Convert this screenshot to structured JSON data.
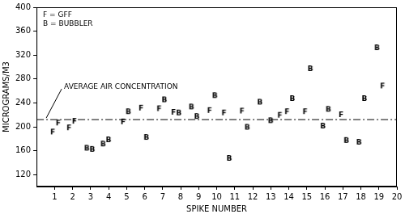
{
  "chart_data": {
    "type": "scatter",
    "x_label": "SPIKE NUMBER",
    "y_label": "MICROGRAMS/M3",
    "xlim": [
      0,
      20
    ],
    "xticks": [
      1,
      2,
      3,
      4,
      5,
      6,
      7,
      8,
      9,
      10,
      11,
      12,
      13,
      14,
      15,
      16,
      17,
      18,
      19,
      20
    ],
    "ylim": [
      100,
      400
    ],
    "yticks": [
      120,
      160,
      200,
      240,
      280,
      320,
      360,
      400
    ],
    "grid": false,
    "legend": "upper left",
    "series": [
      {
        "name": "F = GFF",
        "marker": "F",
        "color": "#000000",
        "x": [
          0.9,
          1.2,
          1.8,
          2.1,
          4.8,
          5.8,
          6.8,
          7.6,
          9.6,
          10.4,
          11.4,
          13.5,
          13.9,
          14.9,
          16.9,
          19.2
        ],
        "values": [
          190,
          205,
          197,
          208,
          207,
          230,
          229,
          223,
          226,
          222,
          225,
          218,
          224,
          224,
          219,
          267
        ]
      },
      {
        "name": "B = BUBBLER",
        "marker": "B",
        "color": "#000000",
        "x": [
          2.8,
          3.1,
          3.7,
          4.0,
          5.1,
          6.1,
          7.1,
          7.9,
          8.6,
          8.9,
          9.9,
          10.7,
          11.7,
          12.4,
          13.0,
          14.2,
          15.2,
          15.9,
          16.2,
          17.2,
          17.9,
          18.2,
          18.9
        ],
        "values": [
          163,
          161,
          170,
          177,
          224,
          181,
          244,
          222,
          232,
          216,
          251,
          146,
          198,
          240,
          209,
          246,
          296,
          200,
          228,
          176,
          173,
          246,
          331
        ]
      }
    ],
    "annotations": [
      {
        "text": "AVERAGE AIR CONCENTRATION",
        "y": 212,
        "line_style": "dashdot"
      }
    ]
  }
}
